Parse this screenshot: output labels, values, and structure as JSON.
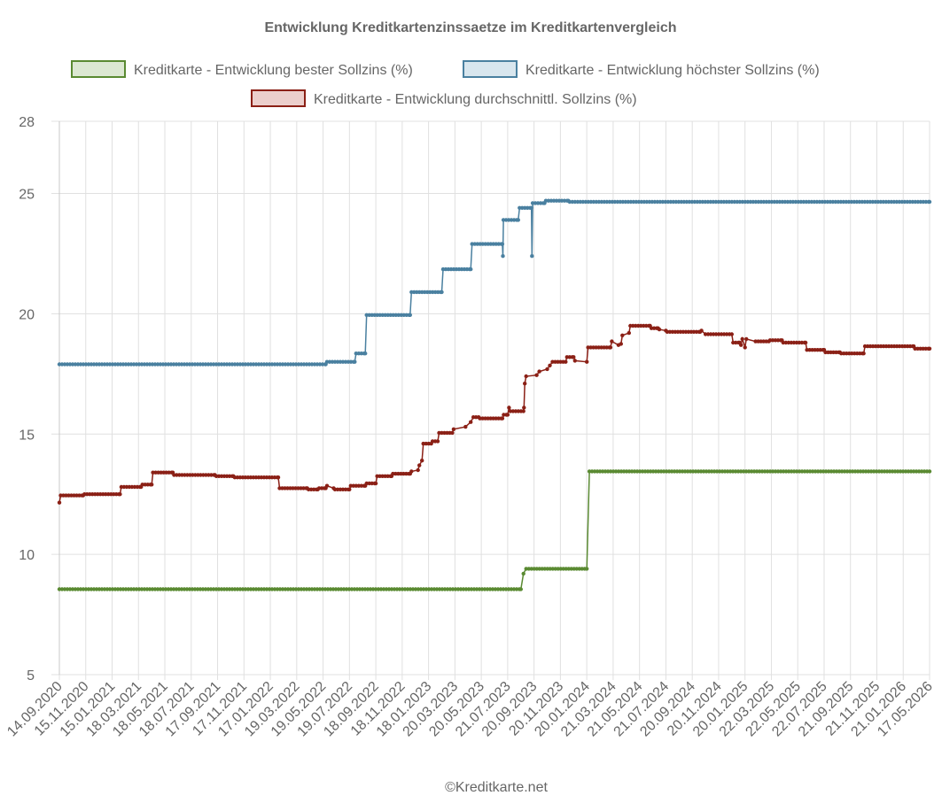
{
  "chart_data": {
    "type": "line",
    "title": "Entwicklung Kreditkartenzinssaetze im Kreditkartenvergleich",
    "copyright": "©Kreditkarte.net",
    "ylim": [
      5,
      28
    ],
    "yticks": [
      5,
      10,
      15,
      20,
      25,
      28
    ],
    "grid": true,
    "legend_placement": "top",
    "categories": [
      "14.09.2020",
      "15.11.2020",
      "15.01.2021",
      "18.03.2021",
      "18.05.2021",
      "18.07.2021",
      "17.09.2021",
      "17.11.2021",
      "17.01.2022",
      "19.03.2022",
      "19.05.2022",
      "19.07.2022",
      "18.09.2022",
      "18.11.2022",
      "18.01.2023",
      "20.03.2023",
      "20.05.2023",
      "21.07.2023",
      "20.09.2023",
      "20.11.2023",
      "20.01.2024",
      "21.03.2024",
      "21.05.2024",
      "21.07.2024",
      "20.09.2024",
      "20.11.2024",
      "20.01.2025",
      "22.03.2025",
      "22.05.2025",
      "22.07.2025",
      "21.09.2025",
      "21.11.2025",
      "21.01.2026",
      "17.05.2026"
    ],
    "series": [
      {
        "name": "Kreditkarte - Entwicklung bester Sollzins  (%)",
        "color": "#5a8a32",
        "fill": "#dce8d2",
        "points": [
          [
            0,
            8.55
          ],
          [
            17.5,
            8.55
          ],
          [
            17.6,
            9.2
          ],
          [
            17.7,
            9.4
          ],
          [
            20.0,
            9.4
          ],
          [
            20.1,
            13.45
          ],
          [
            33.0,
            13.45
          ]
        ]
      },
      {
        "name": "Kreditkarte - Entwicklung höchster Sollzins (%)",
        "color": "#4a80a0",
        "fill": "#d8e6ee",
        "points": [
          [
            0,
            17.9
          ],
          [
            10.1,
            17.9
          ],
          [
            10.15,
            18.0
          ],
          [
            11.2,
            18.0
          ],
          [
            11.25,
            18.35
          ],
          [
            11.6,
            18.35
          ],
          [
            11.65,
            19.95
          ],
          [
            13.3,
            19.95
          ],
          [
            13.35,
            20.9
          ],
          [
            14.5,
            20.9
          ],
          [
            14.55,
            21.85
          ],
          [
            15.6,
            21.85
          ],
          [
            15.65,
            22.9
          ],
          [
            16.8,
            22.9
          ],
          [
            16.82,
            22.4
          ],
          [
            16.84,
            23.9
          ],
          [
            17.4,
            23.9
          ],
          [
            17.45,
            24.4
          ],
          [
            17.9,
            24.4
          ],
          [
            17.92,
            22.4
          ],
          [
            17.95,
            24.6
          ],
          [
            18.4,
            24.6
          ],
          [
            18.45,
            24.7
          ],
          [
            19.3,
            24.7
          ],
          [
            19.35,
            24.65
          ],
          [
            33.0,
            24.65
          ]
        ]
      },
      {
        "name": "Kreditkarte - Entwicklung durchschnittl. Sollzins (%)",
        "color": "#8b2016",
        "fill": "#eccfcc",
        "points": [
          [
            0,
            12.15
          ],
          [
            0.05,
            12.45
          ],
          [
            0.9,
            12.45
          ],
          [
            0.95,
            12.5
          ],
          [
            2.3,
            12.5
          ],
          [
            2.35,
            12.8
          ],
          [
            3.1,
            12.8
          ],
          [
            3.15,
            12.9
          ],
          [
            3.5,
            12.9
          ],
          [
            3.55,
            13.4
          ],
          [
            4.3,
            13.4
          ],
          [
            4.35,
            13.3
          ],
          [
            5.9,
            13.3
          ],
          [
            5.95,
            13.25
          ],
          [
            6.6,
            13.25
          ],
          [
            6.65,
            13.2
          ],
          [
            8.3,
            13.2
          ],
          [
            8.35,
            12.75
          ],
          [
            9.4,
            12.75
          ],
          [
            9.45,
            12.7
          ],
          [
            9.8,
            12.7
          ],
          [
            9.85,
            12.75
          ],
          [
            10.1,
            12.75
          ],
          [
            10.15,
            12.85
          ],
          [
            10.4,
            12.75
          ],
          [
            10.45,
            12.7
          ],
          [
            11.0,
            12.7
          ],
          [
            11.05,
            12.85
          ],
          [
            11.6,
            12.85
          ],
          [
            11.65,
            12.95
          ],
          [
            12.0,
            12.95
          ],
          [
            12.05,
            13.25
          ],
          [
            12.6,
            13.25
          ],
          [
            12.65,
            13.35
          ],
          [
            13.3,
            13.35
          ],
          [
            13.35,
            13.45
          ],
          [
            13.6,
            13.5
          ],
          [
            13.65,
            13.7
          ],
          [
            13.75,
            13.9
          ],
          [
            13.8,
            14.6
          ],
          [
            14.1,
            14.6
          ],
          [
            14.15,
            14.7
          ],
          [
            14.35,
            14.7
          ],
          [
            14.4,
            15.05
          ],
          [
            14.9,
            15.05
          ],
          [
            14.95,
            15.2
          ],
          [
            15.4,
            15.3
          ],
          [
            15.6,
            15.5
          ],
          [
            15.7,
            15.7
          ],
          [
            15.9,
            15.7
          ],
          [
            15.95,
            15.65
          ],
          [
            16.8,
            15.65
          ],
          [
            16.85,
            15.8
          ],
          [
            17.0,
            15.8
          ],
          [
            17.05,
            16.1
          ],
          [
            17.1,
            15.95
          ],
          [
            17.6,
            15.95
          ],
          [
            17.62,
            16.1
          ],
          [
            17.65,
            17.1
          ],
          [
            17.7,
            17.4
          ],
          [
            18.1,
            17.45
          ],
          [
            18.2,
            17.6
          ],
          [
            18.5,
            17.7
          ],
          [
            18.6,
            17.85
          ],
          [
            18.7,
            18.0
          ],
          [
            19.2,
            18.0
          ],
          [
            19.25,
            18.2
          ],
          [
            19.5,
            18.2
          ],
          [
            19.55,
            18.05
          ],
          [
            20.0,
            18.0
          ],
          [
            20.05,
            18.6
          ],
          [
            20.9,
            18.6
          ],
          [
            20.95,
            18.85
          ],
          [
            21.2,
            18.7
          ],
          [
            21.3,
            18.75
          ],
          [
            21.35,
            19.1
          ],
          [
            21.6,
            19.2
          ],
          [
            21.65,
            19.5
          ],
          [
            22.4,
            19.5
          ],
          [
            22.45,
            19.4
          ],
          [
            22.7,
            19.4
          ],
          [
            22.75,
            19.35
          ],
          [
            23.0,
            19.3
          ],
          [
            23.05,
            19.25
          ],
          [
            24.3,
            19.25
          ],
          [
            24.35,
            19.3
          ],
          [
            24.5,
            19.15
          ],
          [
            25.5,
            19.15
          ],
          [
            25.55,
            18.8
          ],
          [
            25.8,
            18.8
          ],
          [
            25.85,
            18.7
          ],
          [
            25.9,
            18.95
          ],
          [
            26.0,
            18.6
          ],
          [
            26.05,
            18.95
          ],
          [
            26.4,
            18.85
          ],
          [
            26.9,
            18.85
          ],
          [
            26.95,
            18.9
          ],
          [
            27.4,
            18.9
          ],
          [
            27.45,
            18.8
          ],
          [
            28.3,
            18.8
          ],
          [
            28.35,
            18.5
          ],
          [
            29.0,
            18.5
          ],
          [
            29.05,
            18.4
          ],
          [
            29.6,
            18.4
          ],
          [
            29.65,
            18.35
          ],
          [
            30.5,
            18.35
          ],
          [
            30.55,
            18.65
          ],
          [
            32.4,
            18.65
          ],
          [
            32.45,
            18.55
          ],
          [
            33.0,
            18.55
          ]
        ]
      }
    ]
  }
}
